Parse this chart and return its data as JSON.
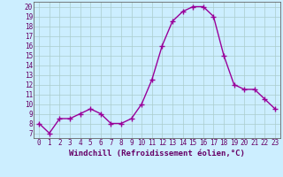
{
  "x": [
    0,
    1,
    2,
    3,
    4,
    5,
    6,
    7,
    8,
    9,
    10,
    11,
    12,
    13,
    14,
    15,
    16,
    17,
    18,
    19,
    20,
    21,
    22,
    23
  ],
  "y": [
    8.0,
    7.0,
    8.5,
    8.5,
    9.0,
    9.5,
    9.0,
    8.0,
    8.0,
    8.5,
    10.0,
    12.5,
    16.0,
    18.5,
    19.5,
    20.0,
    20.0,
    19.0,
    15.0,
    12.0,
    11.5,
    11.5,
    10.5,
    9.5
  ],
  "line_color": "#990099",
  "marker": "+",
  "marker_size": 4,
  "bg_color": "#cceeff",
  "grid_color": "#aacccc",
  "xlabel": "Windchill (Refroidissement éolien,°C)",
  "xlabel_color": "#660066",
  "xlim": [
    -0.5,
    23.5
  ],
  "ylim": [
    6.5,
    20.5
  ],
  "yticks": [
    7,
    8,
    9,
    10,
    11,
    12,
    13,
    14,
    15,
    16,
    17,
    18,
    19,
    20
  ],
  "xticks": [
    0,
    1,
    2,
    3,
    4,
    5,
    6,
    7,
    8,
    9,
    10,
    11,
    12,
    13,
    14,
    15,
    16,
    17,
    18,
    19,
    20,
    21,
    22,
    23
  ],
  "tick_fontsize": 5.5,
  "xlabel_fontsize": 6.5,
  "tick_color": "#660066",
  "spine_color": "#666666",
  "line_width": 1.0
}
